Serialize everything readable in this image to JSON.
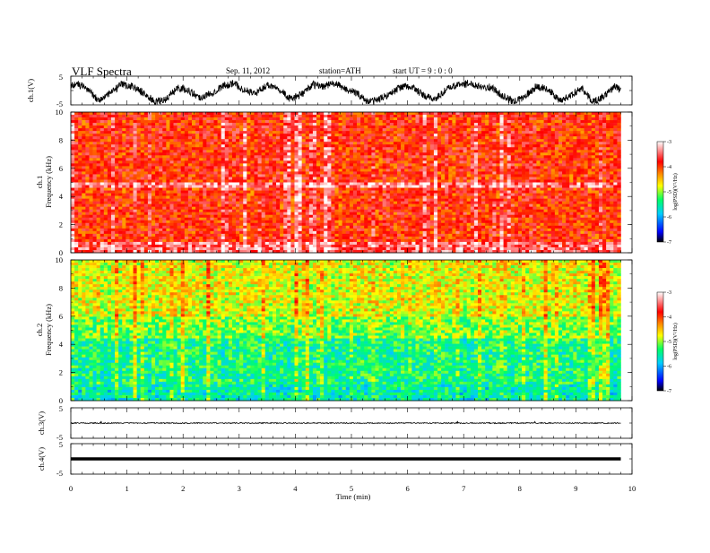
{
  "header": {
    "title": "VLF  Spectra",
    "date": "Sep. 11, 2012",
    "station": "station=ATH",
    "start": "start  UT  =   9  :  0  :  0"
  },
  "chart_data": [
    {
      "type": "line",
      "name": "ch1-waveform",
      "ylabel": "ch.1(V)",
      "yticks": [
        "5",
        "-5"
      ],
      "ylim": [
        -5,
        5
      ],
      "xlim": [
        0,
        10
      ],
      "x": [
        0,
        0.1,
        0.3,
        0.5,
        0.7,
        0.9,
        1.1,
        1.3,
        1.5,
        1.7,
        1.9,
        2.1,
        2.3,
        2.5,
        2.7,
        2.9,
        3.1,
        3.3,
        3.5,
        3.7,
        3.9,
        4.1,
        4.3,
        4.5,
        4.7,
        4.9,
        5.1,
        5.3,
        5.5,
        5.7,
        5.9,
        6.1,
        6.3,
        6.5,
        6.7,
        6.9,
        7.1,
        7.3,
        7.5,
        7.7,
        7.9,
        8.1,
        8.3,
        8.5,
        8.7,
        8.9,
        9.1,
        9.3,
        9.5,
        9.7,
        9.8
      ],
      "y": [
        1.5,
        2.5,
        0.5,
        -3.5,
        -1.0,
        2.0,
        1.5,
        -1.0,
        -4.0,
        -3.0,
        1.0,
        0.0,
        -2.5,
        -1.0,
        1.5,
        2.5,
        0.0,
        -1.0,
        2.0,
        1.0,
        -3.0,
        -1.5,
        2.0,
        1.5,
        2.5,
        0.5,
        -1.0,
        -4.0,
        -3.0,
        -1.0,
        1.5,
        1.0,
        -2.0,
        -3.0,
        0.5,
        2.0,
        2.5,
        1.5,
        1.0,
        -2.0,
        -4.0,
        -2.0,
        1.5,
        0.5,
        -3.5,
        -2.0,
        1.0,
        -4.0,
        -2.0,
        1.5,
        0.0
      ]
    },
    {
      "type": "heatmap",
      "name": "ch1-spectrogram",
      "ylabel": "ch.1\nFrequency  (kHz)",
      "yticks": [
        "10",
        "8",
        "6",
        "4",
        "2",
        "0"
      ],
      "ylim": [
        0,
        10
      ],
      "xlim": [
        0,
        9.8
      ],
      "colorbar": {
        "label": "log(PSD)(V²/Hz)",
        "ticks": [
          "-3",
          "-4",
          "-5",
          "-6",
          "-7"
        ],
        "range": [
          -7,
          -3
        ]
      },
      "dominant_level": -3.8
    },
    {
      "type": "heatmap",
      "name": "ch2-spectrogram",
      "ylabel": "ch.2\nFrequency  (kHz)",
      "yticks": [
        "10",
        "8",
        "6",
        "4",
        "2",
        "0"
      ],
      "ylim": [
        0,
        10
      ],
      "xlim": [
        0,
        9.8
      ],
      "colorbar": {
        "label": "log(PSD)(V²/Hz)",
        "ticks": [
          "-3",
          "-4",
          "-5",
          "-6",
          "-7"
        ],
        "range": [
          -7,
          -3
        ]
      },
      "dominant_level": -5.0
    },
    {
      "type": "line",
      "name": "ch3-waveform",
      "ylabel": "ch.3(V)",
      "yticks": [
        "5",
        "-5"
      ],
      "ylim": [
        -5,
        5
      ],
      "xlim": [
        0,
        9.8
      ],
      "level": 0
    },
    {
      "type": "line",
      "name": "ch4-waveform",
      "ylabel": "ch.4(V)",
      "yticks": [
        "5",
        "-5"
      ],
      "ylim": [
        -5,
        5
      ],
      "xlim": [
        0,
        9.8
      ],
      "level": 0
    }
  ],
  "xaxis": {
    "label": "Time  (min)",
    "ticks": [
      "0",
      "1",
      "2",
      "3",
      "4",
      "5",
      "6",
      "7",
      "8",
      "9",
      "10"
    ],
    "range": [
      0,
      10
    ]
  },
  "colors": {
    "cmap": [
      "#000000",
      "#0000ff",
      "#00ccff",
      "#00ff66",
      "#ffff00",
      "#ff8800",
      "#ff0000",
      "#ffffff"
    ]
  }
}
